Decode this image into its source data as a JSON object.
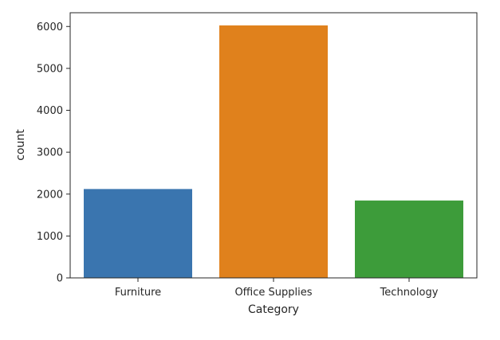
{
  "chart_data": {
    "type": "bar",
    "categories": [
      "Furniture",
      "Office Supplies",
      "Technology"
    ],
    "values": [
      2121,
      6026,
      1847
    ],
    "xlabel": "Category",
    "ylabel": "count",
    "ylim": [
      0,
      6328
    ],
    "yticks": [
      0,
      1000,
      2000,
      3000,
      4000,
      5000,
      6000
    ],
    "grid": false,
    "colors": [
      "#3a75af",
      "#e0811c",
      "#3d9c3a"
    ]
  }
}
